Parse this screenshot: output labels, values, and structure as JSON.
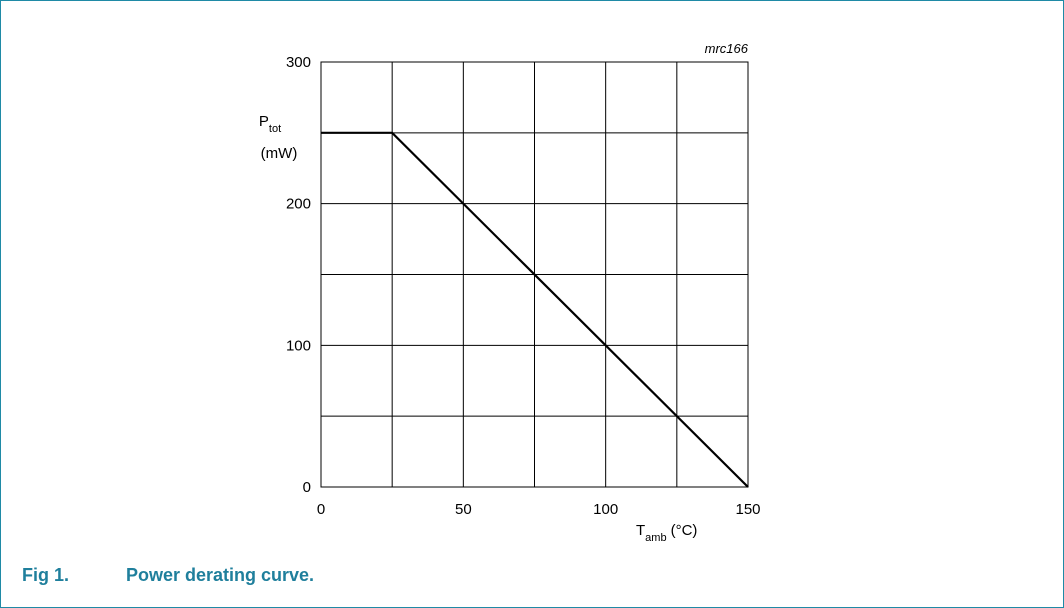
{
  "figure": {
    "code": "mrc166",
    "caption_number": "Fig 1.",
    "caption_text": "Power derating curve."
  },
  "chart_data": {
    "type": "line",
    "title": "",
    "xlabel_main": "T",
    "xlabel_sub": "amb",
    "xlabel_unit": "(°C)",
    "ylabel_main": "P",
    "ylabel_sub": "tot",
    "ylabel_unit": "(mW)",
    "xlim": [
      0,
      150
    ],
    "ylim": [
      0,
      300
    ],
    "x_ticks": [
      0,
      50,
      100,
      150
    ],
    "y_ticks": [
      0,
      100,
      200,
      300
    ],
    "x_grid_step": 25,
    "y_grid_step": 50,
    "grid": true,
    "series": [
      {
        "x": [
          0,
          25,
          150
        ],
        "y": [
          250,
          250,
          0
        ]
      }
    ]
  }
}
